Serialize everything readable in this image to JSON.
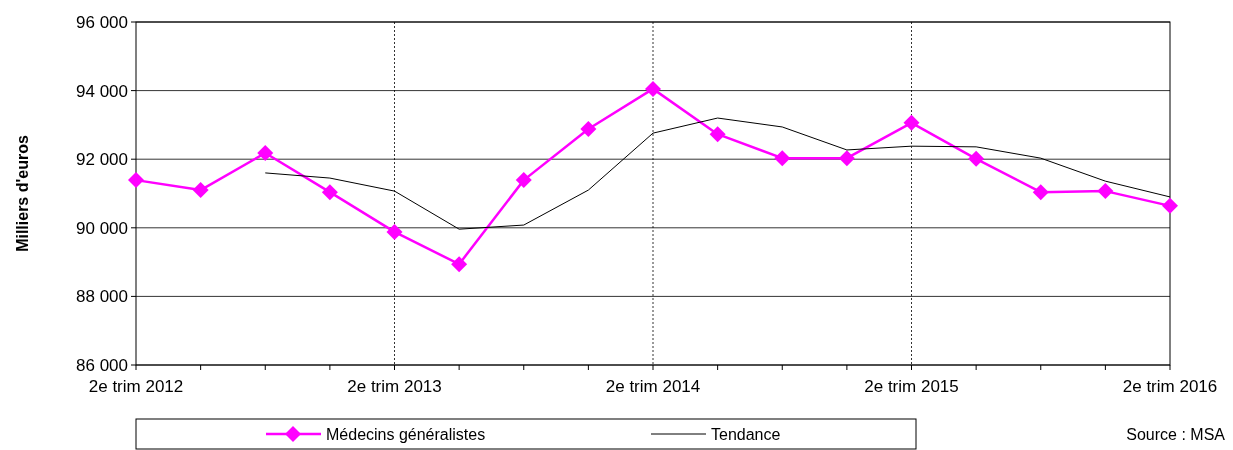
{
  "chart_data": {
    "type": "line",
    "ylabel": "Milliers d'euros",
    "categories": [
      "2e trim 2012",
      null,
      null,
      null,
      "2e trim 2013",
      null,
      null,
      null,
      "2e trim 2014",
      null,
      null,
      null,
      "2e trim 2015",
      null,
      null,
      null,
      "2e trim 2016"
    ],
    "series": [
      {
        "name": "Médecins généralistes",
        "color": "#ff00ff",
        "marker": "diamond",
        "values": [
          91390,
          91100,
          92180,
          91040,
          89880,
          88940,
          91390,
          92880,
          94050,
          92730,
          92030,
          92030,
          93060,
          92010,
          91040,
          91070,
          90640
        ]
      },
      {
        "name": "Tendance",
        "color": "#000000",
        "marker": "none",
        "values": [
          null,
          null,
          91600,
          91450,
          91070,
          89960,
          90080,
          91100,
          92760,
          93200,
          92940,
          92270,
          92380,
          92360,
          92030,
          91360,
          90900
        ]
      }
    ],
    "ylim": [
      86000,
      96000
    ],
    "yticks": [
      {
        "value": 86000,
        "label": "86 000"
      },
      {
        "value": 88000,
        "label": "88 000"
      },
      {
        "value": 90000,
        "label": "90 000"
      },
      {
        "value": 92000,
        "label": "92 000"
      },
      {
        "value": 94000,
        "label": "94 000"
      },
      {
        "value": 96000,
        "label": "96 000"
      }
    ],
    "grid": true,
    "legend": "bottom",
    "line_style": "solid",
    "annotations": [
      "Source : MSA"
    ]
  }
}
